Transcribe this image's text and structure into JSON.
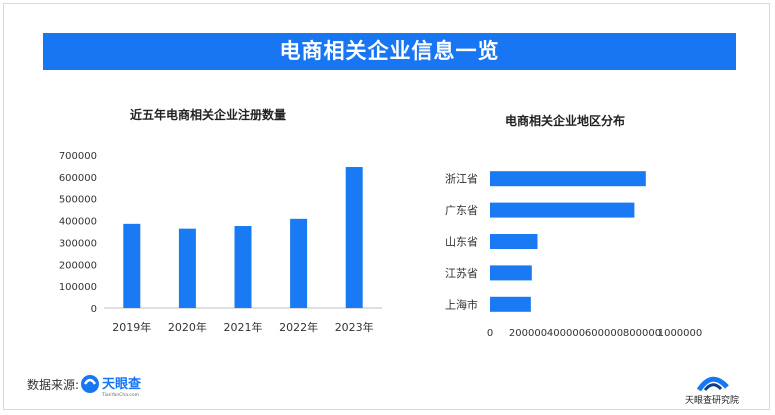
{
  "banner": {
    "title": "电商相关企业信息一览"
  },
  "footer": {
    "source_label": "数据来源:",
    "left_logo_text": "天眼查",
    "left_logo_sub": "TianYanCha.com",
    "right_logo_text": "天眼查研究院"
  },
  "chart_data": [
    {
      "type": "bar",
      "title": "近五年电商相关企业注册数量",
      "categories": [
        "2019年",
        "2020年",
        "2021年",
        "2022年",
        "2023年"
      ],
      "values": [
        385000,
        363000,
        375000,
        408000,
        645000
      ],
      "yticks": [
        "0",
        "100000",
        "200000",
        "300000",
        "400000",
        "500000",
        "600000",
        "700000"
      ],
      "ylim": [
        0,
        700000
      ],
      "color": "#1a7af4",
      "grid": false
    },
    {
      "type": "bar",
      "orientation": "horizontal",
      "title": "电商相关企业地区分布",
      "categories": [
        "浙江省",
        "广东省",
        "山东省",
        "江苏省",
        "上海市"
      ],
      "values": [
        820000,
        760000,
        250000,
        220000,
        215000
      ],
      "xticks": [
        "0",
        "200000",
        "400000",
        "600000",
        "800000",
        "1000000"
      ],
      "xlim": [
        0,
        1000000
      ],
      "color": "#1a7af4",
      "grid": false
    }
  ]
}
